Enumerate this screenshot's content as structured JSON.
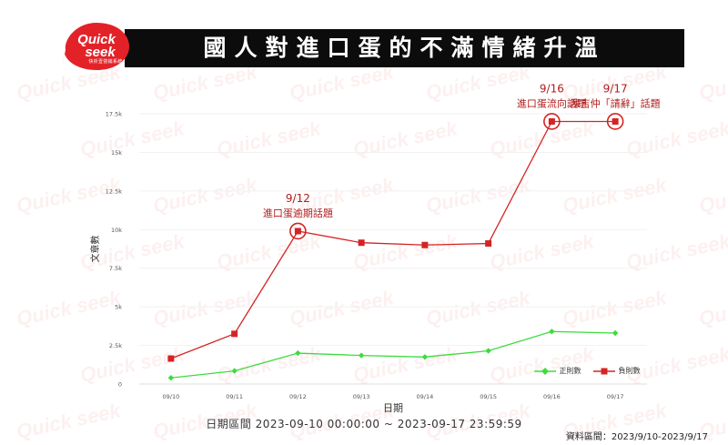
{
  "header": {
    "title": "國人對進口蛋的不滿情緒升溫",
    "logo_text_line1": "Quick",
    "logo_text_line2": "seek",
    "logo_tagline": "快析壹營銷系統"
  },
  "footer": {
    "date_range": "日期區間 2023-09-10 00:00:00 ~ 2023-09-17 23:59:59",
    "source": "資料區間：2023/9/10-2023/9/17"
  },
  "colors": {
    "positive": "#3ddc3d",
    "negative": "#d42424",
    "brand": "#e32228",
    "title_bg": "#0c0c0c"
  },
  "chart_data": {
    "type": "line",
    "categories": [
      "09/10",
      "09/11",
      "09/12",
      "09/13",
      "09/14",
      "09/15",
      "09/16",
      "09/17"
    ],
    "series": [
      {
        "name": "正則數",
        "values": [
          400,
          850,
          2000,
          1850,
          1750,
          2150,
          3400,
          3300
        ]
      },
      {
        "name": "負則數",
        "values": [
          1650,
          3250,
          9900,
          9150,
          9000,
          9100,
          17000,
          17000
        ]
      }
    ],
    "xlabel": "日期",
    "ylabel": "文章數",
    "ylim": [
      0,
      17500
    ],
    "yticks": [
      {
        "value": 0,
        "label": "0"
      },
      {
        "value": 2500,
        "label": "2.5k"
      },
      {
        "value": 5000,
        "label": "5k"
      },
      {
        "value": 7500,
        "label": "7.5k"
      },
      {
        "value": 10000,
        "label": "10k"
      },
      {
        "value": 12500,
        "label": "12.5k"
      },
      {
        "value": 15000,
        "label": "15k"
      },
      {
        "value": 17500,
        "label": "17.5k"
      }
    ],
    "legend": "bottom-right",
    "annotations": [
      {
        "date": "9/12",
        "text": "進口蛋逾期話題",
        "category_index": 2
      },
      {
        "date": "9/16",
        "text": "進口蛋流向話題",
        "category_index": 6
      },
      {
        "date": "9/17",
        "text": "陳吉仲「請辭」話題",
        "category_index": 7
      }
    ]
  }
}
